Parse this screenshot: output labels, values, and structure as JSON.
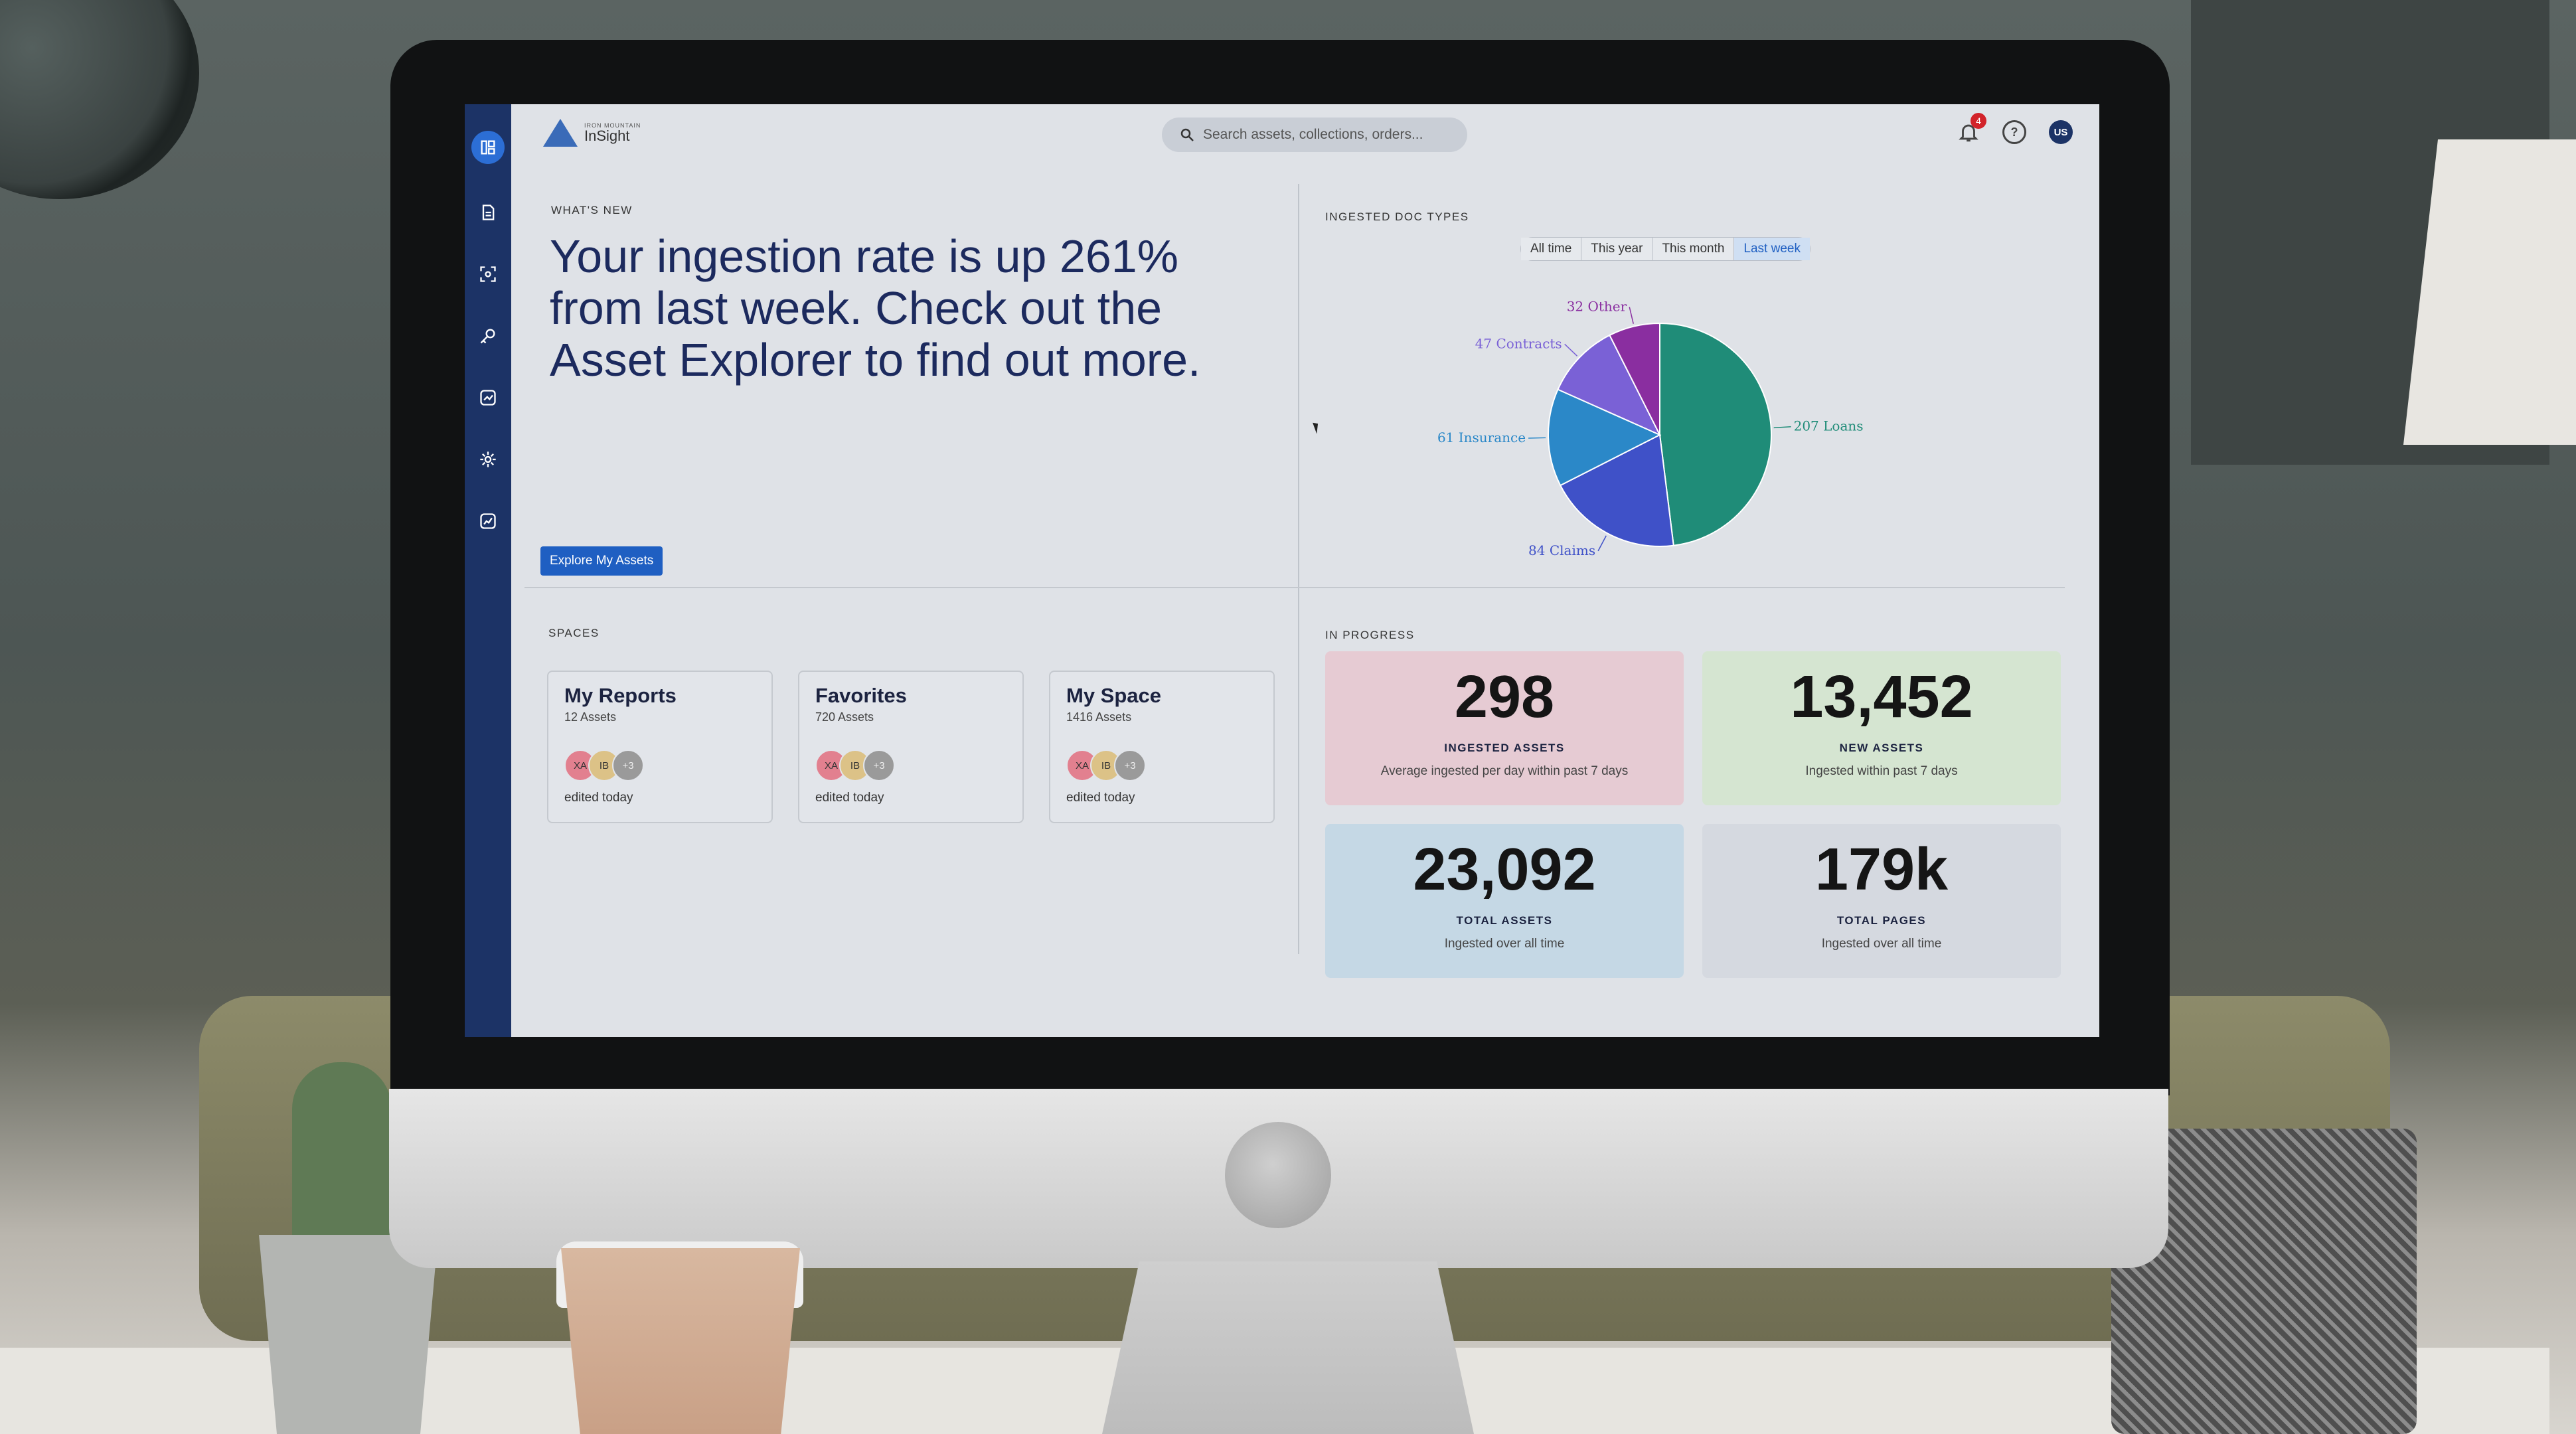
{
  "app": {
    "logo_small": "IRON MOUNTAIN",
    "logo_main": "InSight"
  },
  "search": {
    "placeholder": "Search assets, collections, orders..."
  },
  "header": {
    "notification_count": "4",
    "help_glyph": "?",
    "user_initials": "US"
  },
  "sidebar": {
    "items": [
      {
        "icon": "dashboard-icon",
        "active": true
      },
      {
        "icon": "document-icon"
      },
      {
        "icon": "scan-icon"
      },
      {
        "icon": "key-icon"
      },
      {
        "icon": "trend-icon"
      },
      {
        "icon": "gear-icon"
      },
      {
        "icon": "analytics-icon"
      }
    ]
  },
  "whats_new": {
    "label": "WHAT'S NEW",
    "headline": "Your ingestion rate is up 261% from last week. Check out the Asset Explorer to find out more.",
    "button_label": "Explore My Assets"
  },
  "doc_types": {
    "label": "INGESTED DOC TYPES",
    "filters": [
      "All time",
      "This year",
      "This month",
      "Last week"
    ],
    "active_filter": "Last week"
  },
  "chart_data": {
    "type": "pie",
    "slices": [
      {
        "label": "207 Loans",
        "value": 207,
        "color": "#1f8c78"
      },
      {
        "label": "84 Claims",
        "value": 84,
        "color": "#3f51c8"
      },
      {
        "label": "61 Insurance",
        "value": 61,
        "color": "#2b88c8"
      },
      {
        "label": "47 Contracts",
        "value": 47,
        "color": "#7a61d6"
      },
      {
        "label": "32 Other",
        "value": 32,
        "color": "#8a2ea0"
      }
    ]
  },
  "spaces": {
    "label": "SPACES",
    "cards": [
      {
        "title": "My Reports",
        "count": "12 Assets",
        "avatars": [
          "XA",
          "IB",
          "+3"
        ],
        "edited": "edited today"
      },
      {
        "title": "Favorites",
        "count": "720 Assets",
        "avatars": [
          "XA",
          "IB",
          "+3"
        ],
        "edited": "edited today"
      },
      {
        "title": "My Space",
        "count": "1416 Assets",
        "avatars": [
          "XA",
          "IB",
          "+3"
        ],
        "edited": "edited today"
      }
    ]
  },
  "in_progress": {
    "label": "IN PROGRESS",
    "stats": [
      {
        "value": "298",
        "label": "INGESTED ASSETS",
        "sub": "Average ingested per day within past 7 days",
        "color": "#e6cbd3"
      },
      {
        "value": "13,452",
        "label": "NEW ASSETS",
        "sub": "Ingested within past 7 days",
        "color": "#d5e5d1"
      },
      {
        "value": "23,092",
        "label": "TOTAL ASSETS",
        "sub": "Ingested over all time",
        "color": "#c5d8e5"
      },
      {
        "value": "179k",
        "label": "TOTAL PAGES",
        "sub": "Ingested over all time",
        "color": "#d5d9e0"
      }
    ]
  }
}
